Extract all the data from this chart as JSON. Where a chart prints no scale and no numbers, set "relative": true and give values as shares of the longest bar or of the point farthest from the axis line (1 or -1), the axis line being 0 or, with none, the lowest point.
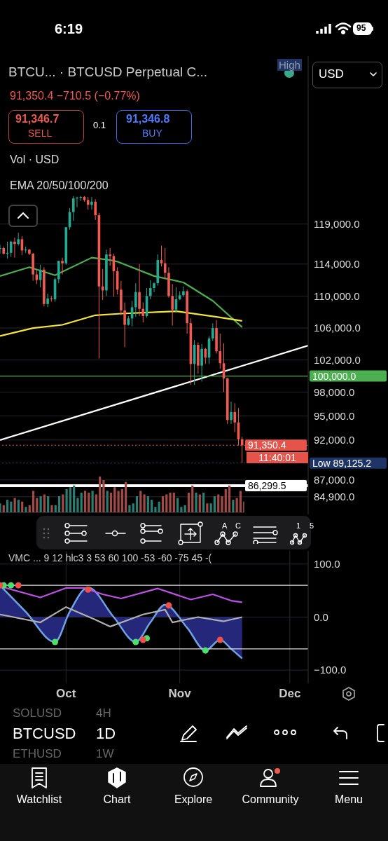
{
  "chart_data": [
    {
      "type": "candlestick",
      "title": "BTCU... · BTCUSD Perpetual C...",
      "x": [
        "--09-13",
        "--09-14",
        "--09-15",
        "--09-16",
        "--09-17",
        "--09-18",
        "--09-19",
        "--09-20",
        "--09-21",
        "--09-22",
        "--09-23",
        "--09-24",
        "--09-25",
        "--09-26",
        "--09-27",
        "--09-28",
        "--09-29",
        "--09-30",
        "--10-01",
        "--10-02",
        "--10-03",
        "--10-04",
        "--10-05",
        "--10-06",
        "--10-07",
        "--10-08",
        "--10-09",
        "--10-10",
        "--10-11",
        "--10-12",
        "--10-13",
        "--10-14",
        "--10-15",
        "--10-16",
        "--10-17",
        "--10-18",
        "--10-19",
        "--10-20",
        "--10-21",
        "--10-22",
        "--10-23",
        "--10-24",
        "--10-25",
        "--10-26",
        "--10-27",
        "--10-28",
        "--10-29",
        "--10-30",
        "--10-31",
        "--11-01",
        "--11-02",
        "--11-03",
        "--11-04",
        "--11-05",
        "--11-06",
        "--11-07",
        "--11-08",
        "--11-09",
        "--11-10",
        "--11-11",
        "--11-12",
        "--11-13",
        "--11-14",
        "--11-15",
        "--11-16",
        "--11-17",
        "--11-18"
      ],
      "ohlc": [
        [
          115900,
          116400,
          115300,
          116000
        ],
        [
          116000,
          116200,
          115200,
          115300
        ],
        [
          115300,
          116800,
          114700,
          115400
        ],
        [
          115400,
          116900,
          114900,
          116800
        ],
        [
          116800,
          117300,
          114800,
          116500
        ],
        [
          116500,
          117900,
          116300,
          117100
        ],
        [
          117100,
          117500,
          115100,
          115700
        ],
        [
          115700,
          116200,
          115400,
          115800
        ],
        [
          115800,
          115900,
          115100,
          115300
        ],
        [
          115300,
          115400,
          111900,
          112700
        ],
        [
          112700,
          113300,
          111500,
          112000
        ],
        [
          112000,
          113900,
          111100,
          113300
        ],
        [
          113300,
          113600,
          108700,
          109000
        ],
        [
          109000,
          110300,
          108600,
          109700
        ],
        [
          109700,
          110000,
          109300,
          109600
        ],
        [
          109600,
          112300,
          109300,
          112100
        ],
        [
          112100,
          114400,
          111600,
          114400
        ],
        [
          114400,
          114800,
          112700,
          114100
        ],
        [
          114100,
          118600,
          113900,
          118600
        ],
        [
          118600,
          121000,
          118300,
          120500
        ],
        [
          120500,
          122500,
          119400,
          122200
        ],
        [
          122200,
          122400,
          121100,
          122300
        ],
        [
          122300,
          122500,
          121900,
          122400
        ],
        [
          122400,
          122500,
          121800,
          122000
        ],
        [
          122000,
          122400,
          120800,
          121400
        ],
        [
          121400,
          122400,
          120800,
          121800
        ],
        [
          121800,
          122100,
          119500,
          120100
        ],
        [
          120100,
          120400,
          102200,
          111200
        ],
        [
          111200,
          113400,
          109500,
          110700
        ],
        [
          110700,
          115800,
          110000,
          115200
        ],
        [
          115200,
          116000,
          113800,
          115000
        ],
        [
          115000,
          115300,
          109900,
          113100
        ],
        [
          113100,
          113600,
          110200,
          110800
        ],
        [
          110800,
          111900,
          107600,
          108200
        ],
        [
          108200,
          109200,
          103600,
          106400
        ],
        [
          106400,
          107500,
          106300,
          107200
        ],
        [
          107200,
          109400,
          106200,
          108600
        ],
        [
          108600,
          111600,
          107400,
          110500
        ],
        [
          110500,
          114000,
          107500,
          108400
        ],
        [
          108400,
          109200,
          106700,
          107500
        ],
        [
          107500,
          111000,
          107300,
          110000
        ],
        [
          110000,
          112000,
          109600,
          111000
        ],
        [
          111000,
          111700,
          110500,
          111600
        ],
        [
          111600,
          115200,
          111300,
          114500
        ],
        [
          114500,
          116300,
          113700,
          114100
        ],
        [
          114100,
          116000,
          112100,
          112900
        ],
        [
          112900,
          113600,
          109800,
          110000
        ],
        [
          110000,
          111500,
          106300,
          108300
        ],
        [
          108300,
          111100,
          108000,
          109600
        ],
        [
          109600,
          110600,
          109500,
          110100
        ],
        [
          110100,
          111200,
          109900,
          110600
        ],
        [
          110600,
          110800,
          105300,
          106600
        ],
        [
          106600,
          107200,
          98900,
          101500
        ],
        [
          101500,
          104500,
          98900,
          103900
        ],
        [
          103900,
          104200,
          100300,
          101300
        ],
        [
          101300,
          104000,
          99300,
          103400
        ],
        [
          103400,
          103500,
          101500,
          102300
        ],
        [
          102300,
          105000,
          101500,
          104700
        ],
        [
          104700,
          106600,
          104400,
          106000
        ],
        [
          106000,
          107000,
          102800,
          103100
        ],
        [
          103100,
          105300,
          100900,
          101600
        ],
        [
          101600,
          104100,
          98000,
          99700
        ],
        [
          99700,
          99800,
          94000,
          94500
        ],
        [
          94500,
          96800,
          94000,
          95500
        ],
        [
          95500,
          96600,
          93000,
          94200
        ],
        [
          94200,
          96000,
          91300,
          92100
        ],
        [
          92100,
          92400,
          89125.2,
          91350.4
        ]
      ],
      "series": [
        {
          "type": "line",
          "color": "#4caf50",
          "x": [
            "--09-13",
            "--09-21",
            "--09-28",
            "--10-08",
            "--10-13",
            "--10-15",
            "--10-25",
            "--11-02",
            "--11-10",
            "--11-18"
          ],
          "values": [
            112500,
            113600,
            112600,
            114800,
            114500,
            114300,
            112500,
            111700,
            109400,
            106100
          ]
        },
        {
          "type": "line",
          "color": "#f5e63c",
          "x": [
            "--09-13",
            "--09-22",
            "--09-30",
            "--10-09",
            "--10-16",
            "--10-31",
            "--11-11",
            "--11-18"
          ],
          "values": [
            105000,
            106000,
            106400,
            107600,
            107800,
            108100,
            107400,
            106900
          ]
        },
        {
          "type": "line",
          "color": "#ffffff",
          "x": [
            "--09-13",
            "--12-06"
          ],
          "values": [
            92000,
            103800
          ]
        }
      ],
      "xlim": [
        "--09-13",
        "--12-06"
      ],
      "xticks": [
        {
          "value": "--10-01",
          "label": null
        },
        {
          "value": "--11-01",
          "label": null
        },
        {
          "value": "--12-01",
          "label": null
        }
      ],
      "ylim": [
        82700,
        140000
      ],
      "yticks": [
        {
          "value": 119000,
          "label": "119,000.0"
        },
        {
          "value": 114000,
          "label": "114,000.0"
        },
        {
          "value": 110000,
          "label": "110,000.0"
        },
        {
          "value": 106000,
          "label": "106,000.0"
        },
        {
          "value": 102000,
          "label": "102,000.0"
        },
        {
          "value": 98000,
          "label": "98,000.0"
        },
        {
          "value": 95000,
          "label": "95,000.0"
        },
        {
          "value": 92000,
          "label": "92,000.0"
        },
        {
          "value": 87000,
          "label": "87,000.0"
        },
        {
          "value": 84900,
          "label": "84,900.0"
        }
      ],
      "tick_labels": "y",
      "grid": true,
      "ref_lines": [
        {
          "axis": "y",
          "value": 100000,
          "label": "100,000.0",
          "color": "#4caf50",
          "line_style": "solid"
        },
        {
          "axis": "y",
          "value": 91350.4,
          "label": "91,350.4",
          "color": "#e5534b",
          "line_style": "dotted"
        },
        {
          "axis": "y",
          "value": 89125.2,
          "label": "Low 89,125.2",
          "color": "#1e3566",
          "line_style": "dotted"
        },
        {
          "axis": "y",
          "value": 86299.5,
          "label": "86,299.5",
          "color": "#ffffff",
          "line_style": "solid"
        }
      ],
      "annotations": [
        "91,350.4 −710.5 (−0.77%)",
        "91,346.7",
        "SELL",
        "0.1",
        "91,346.8",
        "BUY",
        "Vol · USD",
        "EMA 20/50/100/200",
        "High",
        "11:40:01",
        "USD",
        "6:19",
        "95",
        "SOLUSD",
        "4H",
        "BTCUSD",
        "1D",
        "ETHUSD",
        "1W",
        "Watchlist",
        "Chart",
        "Explore",
        "Community",
        "Menu",
        "A",
        "C",
        "1",
        "5"
      ]
    },
    {
      "type": "bar",
      "relative": true,
      "tick_labels": false,
      "categories": [
        null,
        null,
        null,
        null,
        null,
        null,
        null,
        null,
        null,
        null,
        null,
        null,
        null,
        null,
        null,
        null,
        null,
        null,
        null,
        null,
        null,
        null,
        null,
        null,
        null,
        null,
        null,
        null,
        null,
        null,
        null,
        null,
        null,
        null,
        null,
        null,
        null,
        null,
        null,
        null,
        null,
        null,
        null,
        null,
        null,
        null,
        null,
        null,
        null,
        null,
        null,
        null,
        null,
        null,
        null,
        null,
        null,
        null,
        null,
        null,
        null,
        null,
        null,
        null,
        null,
        null,
        null
      ],
      "values": [
        0.25,
        0.2,
        0.35,
        0.3,
        0.4,
        0.35,
        0.3,
        0.15,
        0.2,
        0.6,
        0.4,
        0.45,
        0.5,
        0.45,
        0.2,
        0.2,
        0.45,
        0.5,
        0.65,
        0.7,
        0.75,
        0.4,
        0.55,
        0.6,
        0.55,
        0.6,
        0.5,
        1,
        0.9,
        0.6,
        0.55,
        0.7,
        0.6,
        0.65,
        0.85,
        0.2,
        0.25,
        0.45,
        0.6,
        0.5,
        0.45,
        0.35,
        0.15,
        0.3,
        0.45,
        0.5,
        0.55,
        0.55,
        0.4,
        0.15,
        0.2,
        0.55,
        0.75,
        0.55,
        0.5,
        0.55,
        0.25,
        0.25,
        0.45,
        0.5,
        0.45,
        0.65,
        0.75,
        0.35,
        0.4,
        0.6,
        0.3
      ],
      "colors": [
        "#2a7f74",
        "#a34a47",
        "#2a7f74",
        "#2a7f74",
        "#a34a47",
        "#2a7f74",
        "#a34a47",
        "#2a7f74",
        "#a34a47",
        "#a34a47",
        "#a34a47",
        "#2a7f74",
        "#a34a47",
        "#2a7f74",
        "#a34a47",
        "#2a7f74",
        "#2a7f74",
        "#a34a47",
        "#2a7f74",
        "#2a7f74",
        "#2a7f74",
        "#2a7f74",
        "#2a7f74",
        "#a34a47",
        "#a34a47",
        "#2a7f74",
        "#a34a47",
        "#a34a47",
        "#a34a47",
        "#2a7f74",
        "#a34a47",
        "#a34a47",
        "#a34a47",
        "#a34a47",
        "#a34a47",
        "#2a7f74",
        "#2a7f74",
        "#2a7f74",
        "#a34a47",
        "#a34a47",
        "#2a7f74",
        "#2a7f74",
        "#2a7f74",
        "#2a7f74",
        "#a34a47",
        "#a34a47",
        "#a34a47",
        "#a34a47",
        "#2a7f74",
        "#2a7f74",
        "#2a7f74",
        "#a34a47",
        "#a34a47",
        "#2a7f74",
        "#a34a47",
        "#2a7f74",
        "#a34a47",
        "#2a7f74",
        "#2a7f74",
        "#a34a47",
        "#a34a47",
        "#a34a47",
        "#a34a47",
        "#2a7f74",
        "#a34a47",
        "#a34a47",
        "#a34a47"
      ]
    },
    {
      "type": "line",
      "title": "VMC ... 9 12 hlc3 3 53 60 100 -53 -60 -75 45 -(",
      "series": [
        {
          "type": "area",
          "color": "#6fa3e8",
          "x": [
            "--09-13",
            "--09-20",
            "--09-28",
            "--10-02",
            "--10-07",
            "--10-14",
            "--10-20",
            "--10-24",
            "--10-28",
            "--11-03",
            "--11-08",
            "--11-12",
            "--11-15",
            "--11-18"
          ],
          "values": [
            60,
            10,
            -47,
            10,
            56,
            0,
            -47,
            -10,
            23,
            -20,
            -63,
            -43,
            -60,
            -78
          ]
        },
        {
          "type": "line",
          "color": "#c050e8",
          "x": [
            "--09-13",
            "--09-24",
            "--10-01",
            "--10-06",
            "--10-11",
            "--10-16",
            "--10-26",
            "--11-04",
            "--11-10",
            "--11-15",
            "--11-18"
          ],
          "values": [
            58,
            37,
            55,
            55,
            43,
            35,
            54,
            33,
            43,
            31,
            28
          ]
        },
        {
          "type": "line",
          "color": "#b0b0b0",
          "x": [
            "--09-13",
            "--09-24",
            "--10-01",
            "--10-09",
            "--10-13",
            "--10-22",
            "--10-28",
            "--10-30",
            "--11-06",
            "--11-13",
            "--11-18"
          ],
          "values": [
            5,
            -10,
            19,
            -5,
            -18,
            5,
            14,
            -10,
            0,
            -8,
            0
          ]
        },
        {
          "type": "scatter",
          "color": "#4be06a",
          "x": [
            "--09-14",
            "--09-16",
            "--09-28",
            "--10-20",
            "--10-23",
            "--11-08"
          ],
          "values": [
            60,
            60,
            -47,
            -47,
            -40,
            -63
          ]
        },
        {
          "type": "scatter",
          "color": "#f0504a",
          "x": [
            "--09-13",
            "--09-18",
            "--10-07",
            "--10-22",
            "--10-29",
            "--11-12"
          ],
          "values": [
            60,
            60,
            52,
            -43,
            22,
            -43
          ]
        }
      ],
      "xlim": [
        "--09-13",
        "--12-06"
      ],
      "xticks": [
        {
          "value": "--10-01",
          "label": "Oct"
        },
        {
          "value": "--11-01",
          "label": "Nov"
        },
        {
          "value": "--12-01",
          "label": "Dec"
        }
      ],
      "ylim": [
        -125,
        125
      ],
      "yticks": [
        {
          "value": 100,
          "label": "100.0"
        },
        {
          "value": 0,
          "label": "0.0"
        },
        {
          "value": -100,
          "label": "−100.0"
        }
      ],
      "grid": true,
      "ref_lines": [
        {
          "axis": "y",
          "value": 60,
          "color": "#dddddd"
        },
        {
          "axis": "y",
          "value": -60,
          "color": "#dddddd"
        }
      ]
    }
  ]
}
